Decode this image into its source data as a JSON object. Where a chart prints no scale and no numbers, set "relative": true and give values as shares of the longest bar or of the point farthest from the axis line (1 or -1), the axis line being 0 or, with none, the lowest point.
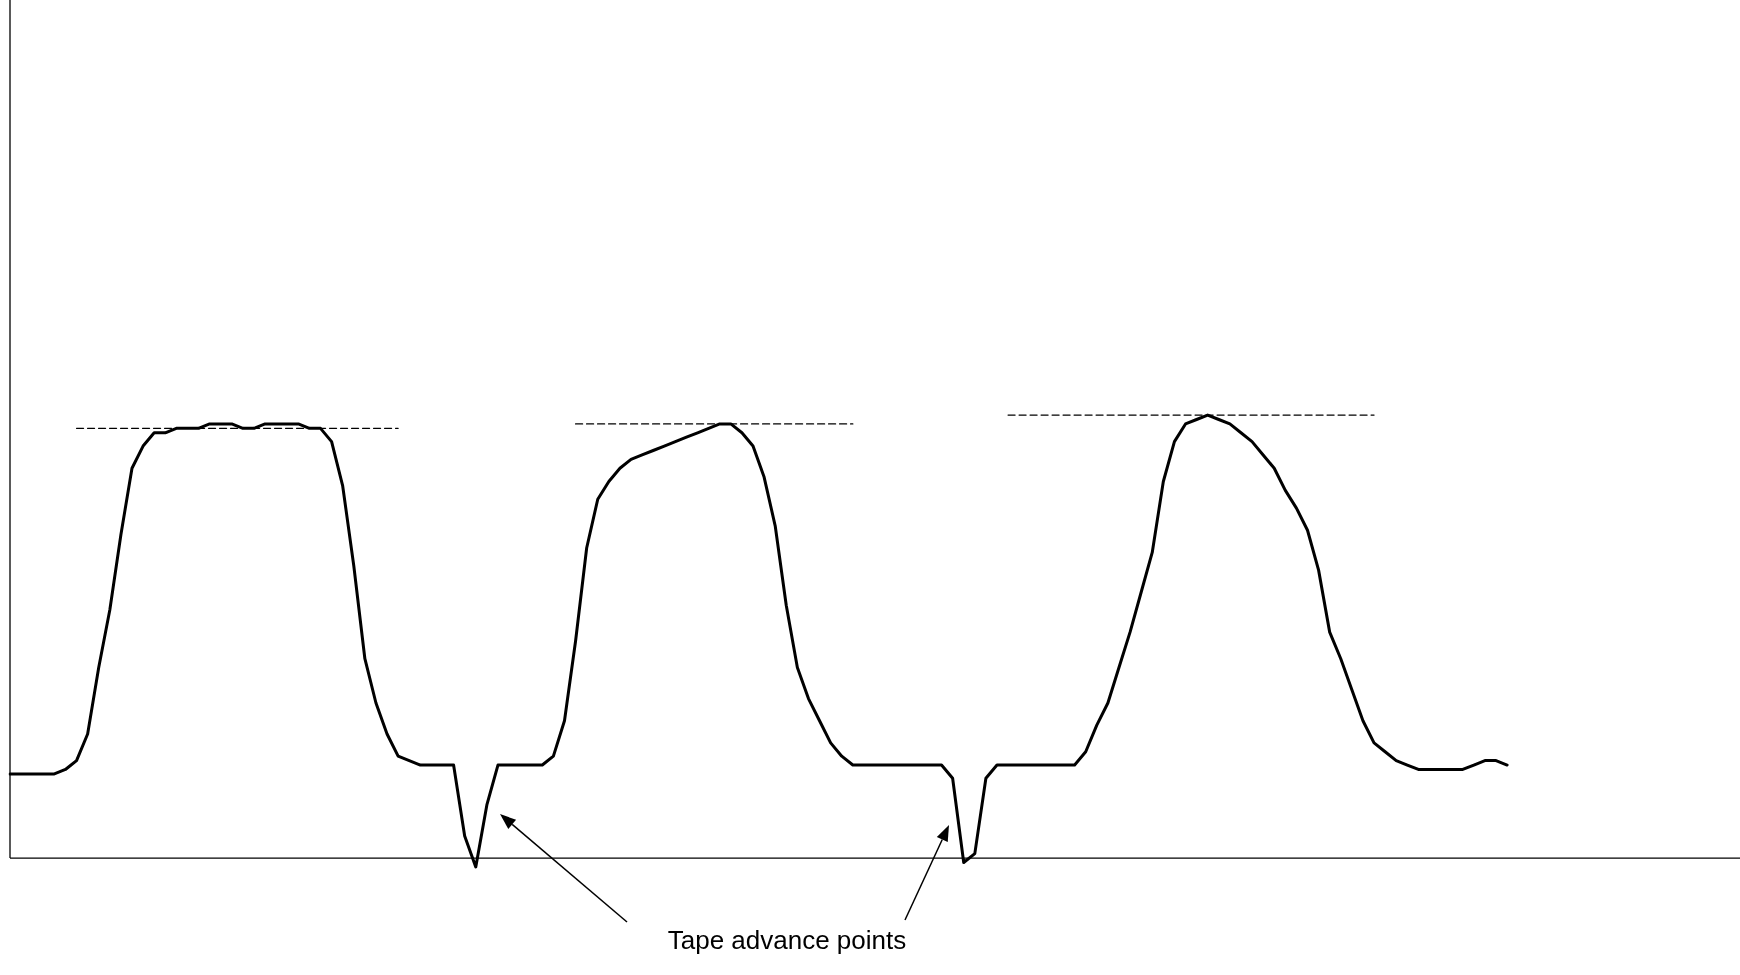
{
  "chart_data": {
    "type": "line",
    "relative": true,
    "marker": "none",
    "legend": false,
    "categories": [
      null,
      null,
      null,
      null,
      null,
      null,
      null,
      null,
      null,
      null,
      null,
      null,
      null,
      null,
      null,
      null,
      null,
      null,
      null,
      null,
      null,
      null,
      null,
      null,
      null,
      null,
      null,
      null,
      null,
      null,
      null,
      null,
      null,
      null,
      null,
      null,
      null,
      null,
      null,
      null,
      null,
      null,
      null,
      null,
      null,
      null,
      null,
      null,
      null,
      null,
      null,
      null,
      null,
      null,
      null,
      null,
      null,
      null,
      null,
      null,
      null,
      null,
      null,
      null,
      null,
      null,
      null,
      null,
      null,
      null,
      null,
      null,
      null,
      null,
      null,
      null,
      null,
      null,
      null,
      null,
      null,
      null,
      null,
      null,
      null,
      null,
      null,
      null,
      null,
      null,
      null,
      null,
      null,
      null,
      null,
      null,
      null,
      null,
      null,
      null,
      null,
      null,
      null,
      null,
      null,
      null,
      null,
      null,
      null,
      null,
      null,
      null,
      null,
      null,
      null,
      null,
      null,
      null,
      null,
      null,
      null,
      null,
      null,
      null,
      null,
      null,
      null,
      null,
      null,
      null,
      null,
      null,
      null,
      null,
      null,
      null,
      null,
      null,
      null,
      null,
      null,
      null,
      null,
      null,
      null,
      null,
      null,
      null,
      null,
      null,
      null,
      null,
      null,
      null,
      null,
      null,
      null
    ],
    "series": [
      {
        "color": "#000000",
        "line_style": "solid",
        "values": [
          0.19,
          0.19,
          0.19,
          0.19,
          0.19,
          0.2,
          0.22,
          0.28,
          0.43,
          0.56,
          0.73,
          0.88,
          0.93,
          0.96,
          0.96,
          0.97,
          0.97,
          0.97,
          0.98,
          0.98,
          0.98,
          0.97,
          0.97,
          0.98,
          0.98,
          0.98,
          0.98,
          0.97,
          0.97,
          0.94,
          0.84,
          0.66,
          0.45,
          0.35,
          0.28,
          0.23,
          0.22,
          0.21,
          0.21,
          0.21,
          0.21,
          0.05,
          -0.02,
          0.12,
          0.21,
          0.21,
          0.21,
          0.21,
          0.21,
          0.23,
          0.31,
          0.49,
          0.7,
          0.81,
          0.85,
          0.88,
          0.9,
          0.91,
          0.92,
          0.93,
          0.94,
          0.95,
          0.96,
          0.97,
          0.98,
          0.98,
          0.96,
          0.93,
          0.86,
          0.75,
          0.57,
          0.43,
          0.36,
          0.31,
          0.26,
          0.23,
          0.21,
          0.21,
          0.21,
          0.21,
          0.21,
          0.21,
          0.21,
          0.21,
          0.21,
          0.18,
          -0.01,
          0.01,
          0.18,
          0.21,
          0.21,
          0.21,
          0.21,
          0.21,
          0.21,
          0.21,
          0.21,
          0.24,
          0.3,
          0.35,
          0.43,
          0.51,
          0.6,
          0.69,
          0.85,
          0.94,
          0.98,
          0.99,
          1.0,
          0.99,
          0.98,
          0.96,
          0.94,
          0.91,
          0.88,
          0.83,
          0.79,
          0.74,
          0.65,
          0.51,
          0.45,
          0.38,
          0.31,
          0.26,
          0.24,
          0.22,
          0.21,
          0.2,
          0.2,
          0.2,
          0.2,
          0.2,
          0.21,
          0.22,
          0.22,
          0.21,
          null,
          null,
          null,
          null,
          null,
          null,
          null,
          null,
          null,
          null,
          null,
          null,
          null,
          null,
          null,
          null,
          null,
          null,
          null,
          null,
          null
        ]
      },
      {
        "color": "#000000",
        "line_style": "dashed",
        "values": [
          null,
          null,
          null,
          null,
          null,
          null,
          0.97,
          0.97,
          0.97,
          0.97,
          0.97,
          0.97,
          0.97,
          0.97,
          0.97,
          0.97,
          0.97,
          0.97,
          0.97,
          0.97,
          0.97,
          0.97,
          0.97,
          0.97,
          0.97,
          0.97,
          0.97,
          0.97,
          0.97,
          0.97,
          0.97,
          0.97,
          0.97,
          0.97,
          0.97,
          0.97,
          null,
          null,
          null,
          null,
          null,
          null,
          null,
          null,
          null,
          null,
          null,
          null,
          null,
          null,
          null,
          null,
          null,
          null,
          null,
          null,
          null,
          null,
          null,
          null,
          null,
          null,
          null,
          null,
          null,
          null,
          null,
          null,
          null,
          null,
          null,
          null,
          null,
          null,
          null,
          null,
          null,
          null,
          null,
          null,
          null,
          null,
          null,
          null,
          null,
          null,
          null,
          null,
          null,
          null,
          null,
          null,
          null,
          null,
          null,
          null,
          null,
          null,
          null,
          null,
          null,
          null,
          null,
          null,
          null,
          null,
          null,
          null,
          null,
          null,
          null,
          null,
          null,
          null,
          null,
          null,
          null,
          null,
          null,
          null,
          null,
          null,
          null,
          null,
          null,
          null,
          null,
          null,
          null,
          null,
          null,
          null,
          null,
          null,
          null,
          null,
          null,
          null,
          null,
          null,
          null,
          null,
          null,
          null,
          null,
          null,
          null,
          null,
          null,
          null,
          null,
          null,
          null,
          null,
          null,
          null,
          null
        ]
      },
      {
        "color": "#000000",
        "line_style": "dashed",
        "values": [
          null,
          null,
          null,
          null,
          null,
          null,
          null,
          null,
          null,
          null,
          null,
          null,
          null,
          null,
          null,
          null,
          null,
          null,
          null,
          null,
          null,
          null,
          null,
          null,
          null,
          null,
          null,
          null,
          null,
          null,
          null,
          null,
          null,
          null,
          null,
          null,
          null,
          null,
          null,
          null,
          null,
          null,
          null,
          null,
          null,
          null,
          null,
          null,
          null,
          null,
          null,
          0.98,
          0.98,
          0.98,
          0.98,
          0.98,
          0.98,
          0.98,
          0.98,
          0.98,
          0.98,
          0.98,
          0.98,
          0.98,
          0.98,
          0.98,
          0.98,
          0.98,
          0.98,
          0.98,
          0.98,
          0.98,
          0.98,
          0.98,
          0.98,
          0.98,
          0.98,
          null,
          null,
          null,
          null,
          null,
          null,
          null,
          null,
          null,
          null,
          null,
          null,
          null,
          null,
          null,
          null,
          null,
          null,
          null,
          null,
          null,
          null,
          null,
          null,
          null,
          null,
          null,
          null,
          null,
          null,
          null,
          null,
          null,
          null,
          null,
          null,
          null,
          null,
          null,
          null,
          null,
          null,
          null,
          null,
          null,
          null,
          null,
          null,
          null,
          null,
          null,
          null,
          null,
          null,
          null,
          null,
          null,
          null,
          null,
          null,
          null,
          null,
          null,
          null,
          null,
          null,
          null,
          null,
          null,
          null,
          null,
          null,
          null,
          null,
          null,
          null,
          null,
          null,
          null,
          null
        ]
      },
      {
        "color": "#000000",
        "line_style": "dashed",
        "values": [
          null,
          null,
          null,
          null,
          null,
          null,
          null,
          null,
          null,
          null,
          null,
          null,
          null,
          null,
          null,
          null,
          null,
          null,
          null,
          null,
          null,
          null,
          null,
          null,
          null,
          null,
          null,
          null,
          null,
          null,
          null,
          null,
          null,
          null,
          null,
          null,
          null,
          null,
          null,
          null,
          null,
          null,
          null,
          null,
          null,
          null,
          null,
          null,
          null,
          null,
          null,
          null,
          null,
          null,
          null,
          null,
          null,
          null,
          null,
          null,
          null,
          null,
          null,
          null,
          null,
          null,
          null,
          null,
          null,
          null,
          null,
          null,
          null,
          null,
          null,
          null,
          null,
          null,
          null,
          null,
          null,
          null,
          null,
          null,
          null,
          null,
          null,
          null,
          null,
          null,
          1.0,
          1.0,
          1.0,
          1.0,
          1.0,
          1.0,
          1.0,
          1.0,
          1.0,
          1.0,
          1.0,
          1.0,
          1.0,
          1.0,
          1.0,
          1.0,
          1.0,
          1.0,
          1.0,
          1.0,
          1.0,
          1.0,
          1.0,
          1.0,
          1.0,
          1.0,
          1.0,
          1.0,
          1.0,
          1.0,
          1.0,
          1.0,
          1.0,
          1.0,
          null,
          null,
          null,
          null,
          null,
          null,
          null,
          null,
          null,
          null,
          null,
          null,
          null,
          null,
          null,
          null,
          null,
          null,
          null,
          null,
          null,
          null,
          null,
          null,
          null,
          null,
          null,
          null,
          null,
          null,
          null,
          null,
          null
        ]
      }
    ],
    "annotations": [
      "Tape advance points"
    ]
  }
}
